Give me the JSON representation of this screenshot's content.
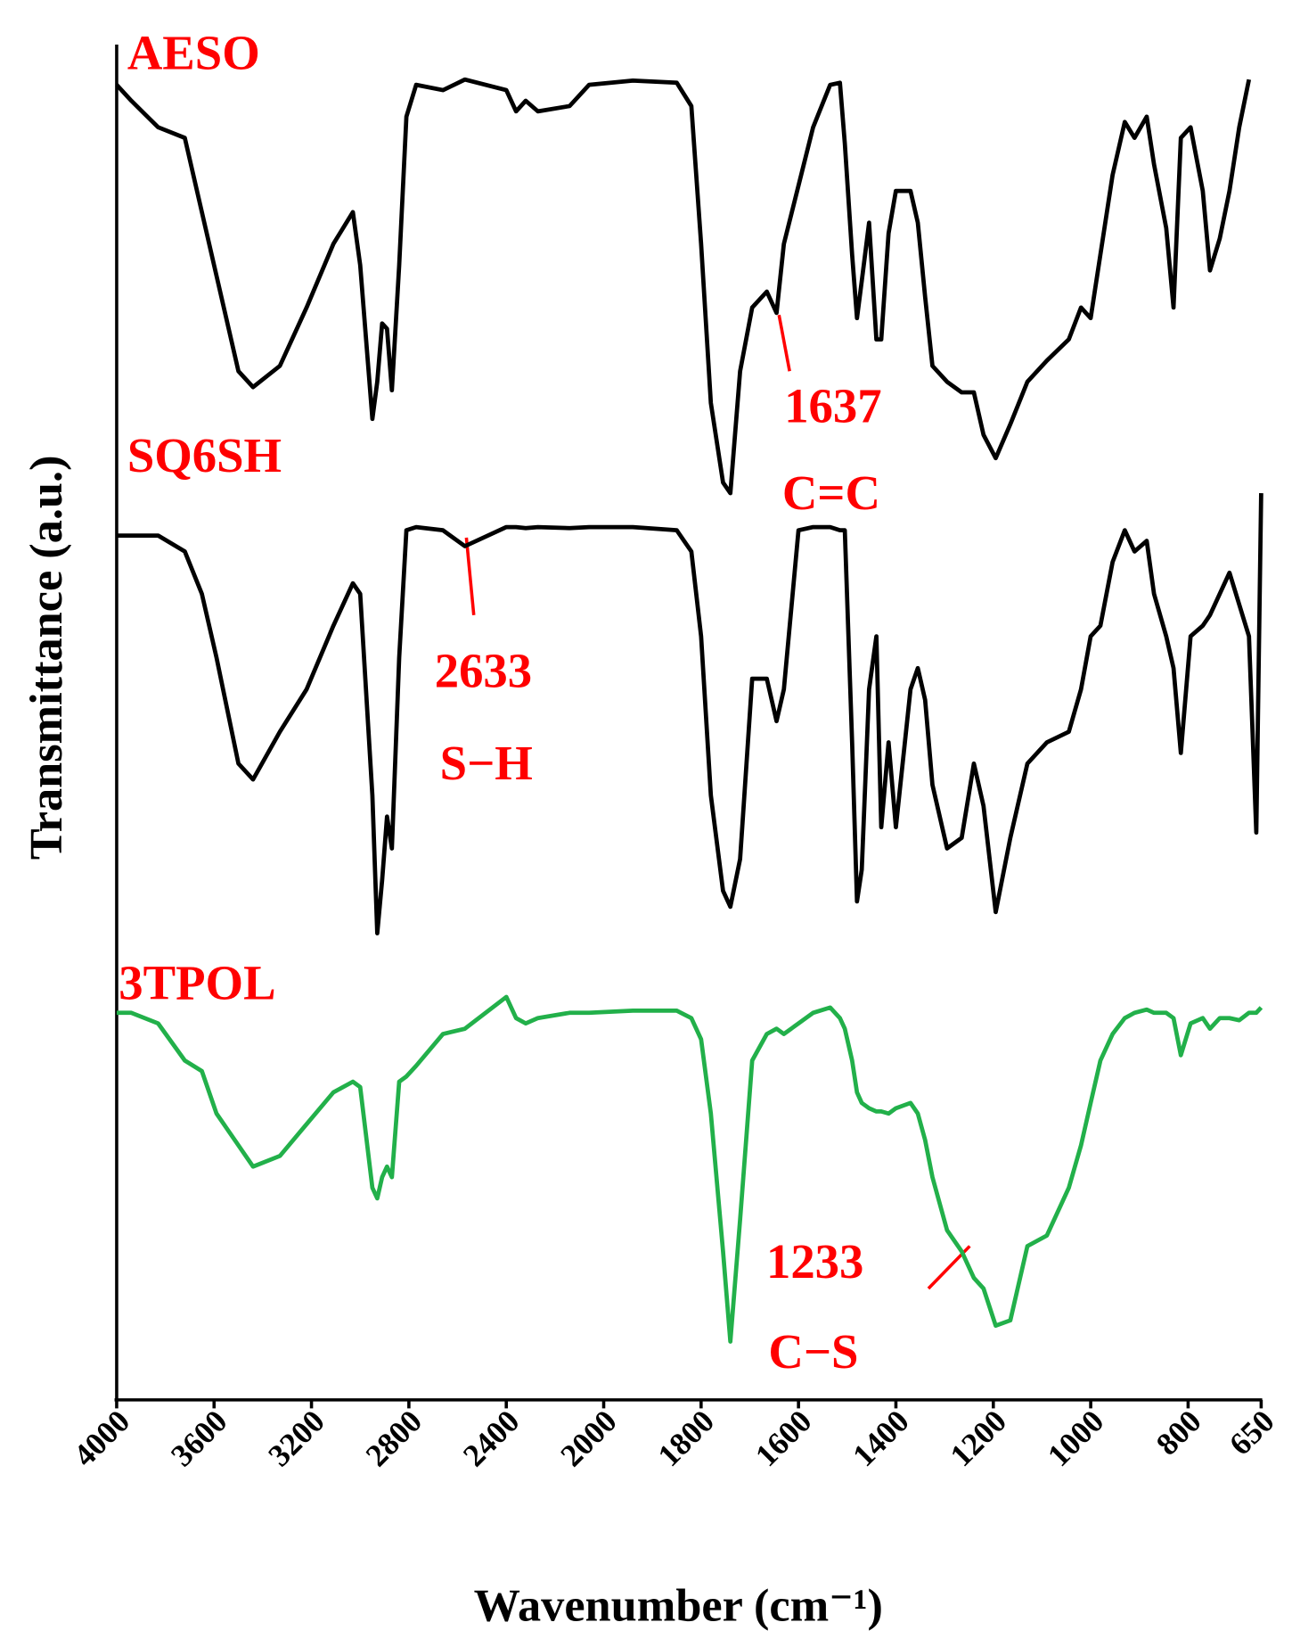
{
  "chart_data": {
    "type": "line",
    "xlabel": "Wavenumber (cm⁻¹)",
    "ylabel": "Transmittance (a.u.)",
    "xlim": [
      4000,
      650
    ],
    "x_scale_change": {
      "at": 2000,
      "ratio": 2
    },
    "xticks": [
      4000,
      3600,
      3200,
      2800,
      2400,
      2000,
      1800,
      1600,
      1400,
      1200,
      1000,
      800,
      650
    ],
    "ylim": [
      0,
      1280
    ],
    "label_color": "#ff0000",
    "x": [
      4000,
      3940,
      3830,
      3720,
      3650,
      3590,
      3500,
      3440,
      3330,
      3220,
      3110,
      3030,
      3000,
      2950,
      2930,
      2910,
      2890,
      2870,
      2840,
      2810,
      2770,
      2660,
      2570,
      2400,
      2360,
      2320,
      2270,
      2140,
      2060,
      1940,
      1850,
      1820,
      1800,
      1780,
      1755,
      1740,
      1720,
      1695,
      1665,
      1645,
      1630,
      1600,
      1570,
      1535,
      1515,
      1505,
      1490,
      1480,
      1470,
      1455,
      1440,
      1430,
      1415,
      1400,
      1370,
      1355,
      1340,
      1325,
      1295,
      1265,
      1240,
      1220,
      1195,
      1165,
      1130,
      1090,
      1045,
      1020,
      1000,
      980,
      955,
      930,
      910,
      885,
      870,
      845,
      830,
      815,
      795,
      770,
      755,
      735,
      715,
      695,
      675,
      660,
      650
    ],
    "series": [
      {
        "name": "AESO",
        "color": "#000000",
        "values": [
          1240,
          1225,
          1200,
          1190,
          1120,
          1060,
          970,
          955,
          975,
          1030,
          1090,
          1120,
          1070,
          925,
          960,
          1015,
          1010,
          952,
          1070,
          1210,
          1240,
          1235,
          1245,
          1235,
          1215,
          1225,
          1215,
          1220,
          1240,
          1244,
          1242,
          1220,
          1090,
          940,
          865,
          855,
          970,
          1030,
          1045,
          1025,
          1090,
          1145,
          1200,
          1240,
          1242,
          1185,
          1080,
          1020,
          1055,
          1110,
          1000,
          1000,
          1100,
          1140,
          1140,
          1110,
          1040,
          975,
          960,
          950,
          950,
          910,
          888,
          920,
          960,
          980,
          1000,
          1030,
          1020,
          1080,
          1155,
          1205,
          1190,
          1210,
          1165,
          1105,
          1030,
          1190,
          1200,
          1140,
          1065,
          1095,
          1140,
          1200,
          1245,
          null,
          null
        ]
      },
      {
        "name": "SQ6SH",
        "color": "#000000",
        "values": [
          815,
          815,
          815,
          800,
          760,
          700,
          600,
          585,
          630,
          670,
          730,
          770,
          760,
          570,
          440,
          490,
          550,
          520,
          700,
          820,
          823,
          820,
          805,
          823,
          823,
          822,
          823,
          822,
          823,
          823,
          820,
          800,
          720,
          570,
          480,
          465,
          510,
          680,
          680,
          640,
          670,
          820,
          823,
          823,
          820,
          820,
          620,
          470,
          500,
          670,
          720,
          540,
          620,
          540,
          670,
          690,
          660,
          580,
          520,
          530,
          600,
          560,
          460,
          530,
          600,
          620,
          630,
          670,
          720,
          730,
          790,
          820,
          800,
          810,
          760,
          720,
          690,
          610,
          720,
          730,
          740,
          760,
          780,
          750,
          720,
          535,
          855
        ]
      },
      {
        "name": "3TPOL",
        "color": "#22b04a",
        "values": [
          365,
          365,
          355,
          320,
          310,
          270,
          240,
          220,
          230,
          260,
          290,
          300,
          295,
          200,
          190,
          210,
          220,
          210,
          300,
          305,
          315,
          345,
          350,
          380,
          360,
          355,
          360,
          365,
          365,
          367,
          367,
          360,
          340,
          270,
          140,
          55,
          170,
          320,
          345,
          350,
          345,
          355,
          365,
          370,
          360,
          350,
          320,
          290,
          280,
          275,
          272,
          272,
          270,
          275,
          280,
          270,
          245,
          210,
          160,
          140,
          115,
          105,
          70,
          75,
          145,
          155,
          200,
          240,
          280,
          320,
          345,
          360,
          365,
          368,
          365,
          365,
          360,
          325,
          355,
          360,
          350,
          360,
          360,
          358,
          365,
          365,
          370
        ]
      }
    ],
    "annotations": [
      "1637",
      "C=C",
      "2633",
      "S−H",
      "1233",
      "C−S"
    ]
  }
}
